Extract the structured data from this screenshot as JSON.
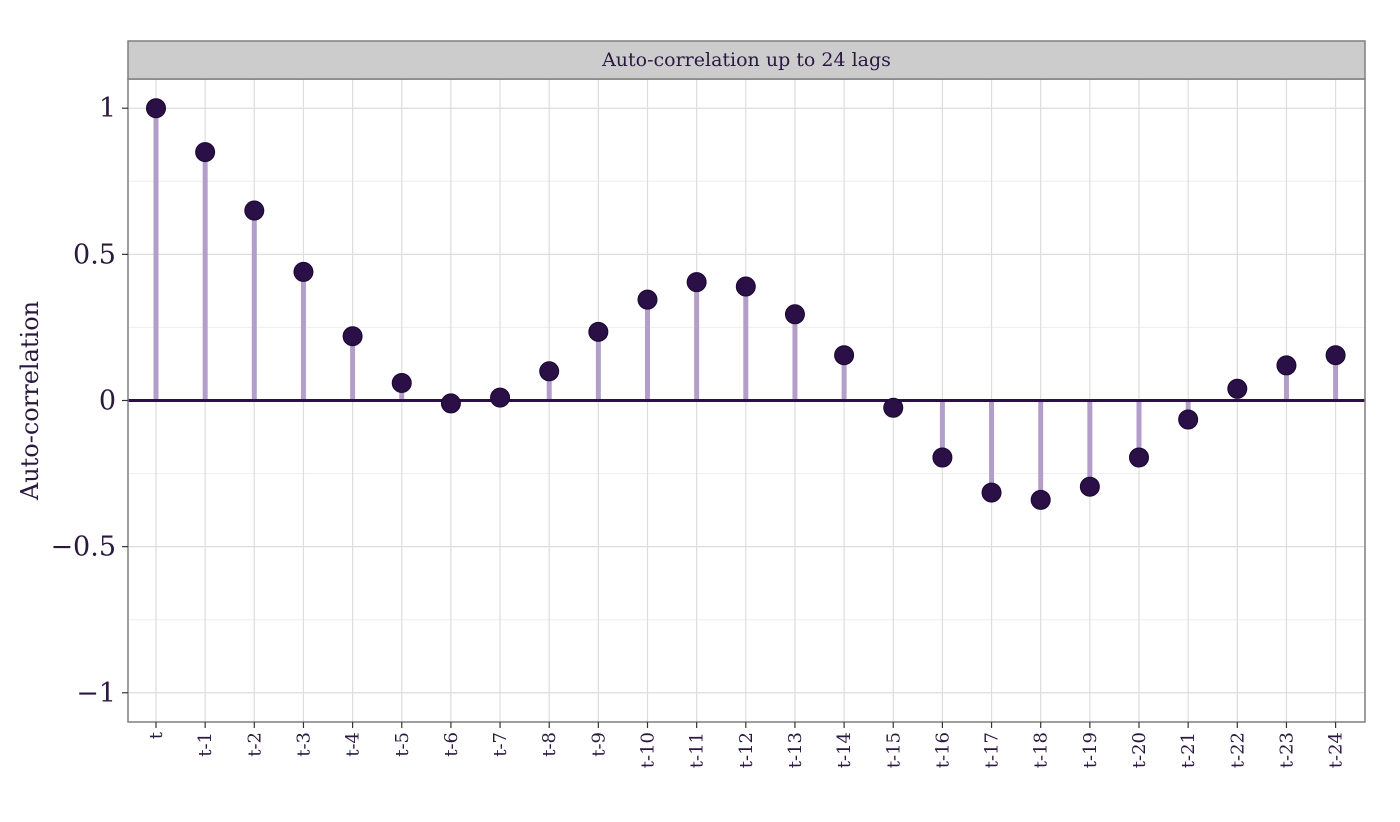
{
  "chart_data": {
    "type": "lollipop",
    "title": "Auto-correlation up to 24 lags",
    "xlabel": "",
    "ylabel": "Auto-correlation",
    "categories": [
      "t",
      "t-1",
      "t-2",
      "t-3",
      "t-4",
      "t-5",
      "t-6",
      "t-7",
      "t-8",
      "t-9",
      "t-10",
      "t-11",
      "t-12",
      "t-13",
      "t-14",
      "t-15",
      "t-16",
      "t-17",
      "t-18",
      "t-19",
      "t-20",
      "t-21",
      "t-22",
      "t-23",
      "t-24"
    ],
    "values": [
      1.0,
      0.85,
      0.65,
      0.44,
      0.22,
      0.06,
      -0.01,
      0.01,
      0.1,
      0.235,
      0.345,
      0.405,
      0.39,
      0.295,
      0.155,
      -0.025,
      -0.195,
      -0.315,
      -0.34,
      -0.295,
      -0.195,
      -0.065,
      0.04,
      0.12,
      0.155
    ],
    "ylim": [
      -1.1,
      1.1
    ],
    "yticks": [
      -1,
      -0.5,
      0,
      0.5,
      1
    ],
    "ytick_labels": [
      "−1",
      "−0.5",
      "0",
      "0.5",
      "1"
    ],
    "grid": true,
    "colors": {
      "point": "#2b0f47",
      "stem": "#b29ec8",
      "zero_line": "#2b0f47",
      "strip": "#cccccc",
      "grid_major": "#dddddd",
      "grid_minor": "#eeeeee",
      "text": "#2b1840"
    }
  }
}
